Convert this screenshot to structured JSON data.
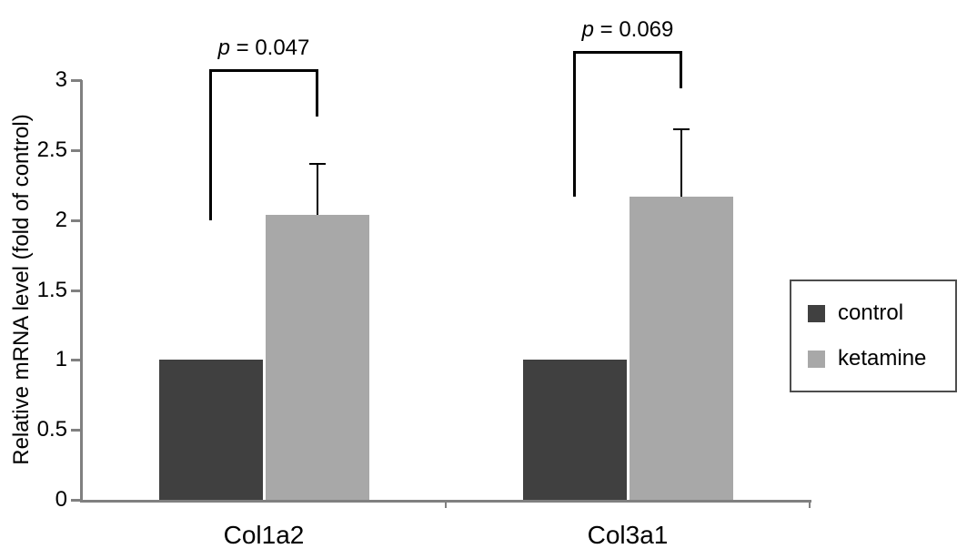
{
  "chart_data": {
    "type": "bar",
    "title": "",
    "xlabel": "",
    "ylabel": "Relative mRNA level (fold of control)",
    "categories": [
      "Col1a2",
      "Col3a1"
    ],
    "series": [
      {
        "name": "control",
        "color": "#404040",
        "values": [
          1.0,
          1.0
        ],
        "errors": [
          0,
          0
        ]
      },
      {
        "name": "ketamine",
        "color": "#a8a8a8",
        "values": [
          2.04,
          2.17
        ],
        "errors": [
          0.36,
          0.48
        ]
      }
    ],
    "ylim": [
      0,
      3
    ],
    "ytick_step": 0.5,
    "yticks": [
      "0",
      "0.5",
      "1",
      "1.5",
      "2",
      "2.5",
      "3"
    ],
    "grid": false,
    "legend_position": "right",
    "axis_color": "#808080",
    "error_bar_color": "#000000",
    "annotations": [
      {
        "label": "p = 0.047",
        "group": 0,
        "top": 3.08,
        "left_bottom": 2.0,
        "right_bottom": 2.74
      },
      {
        "label": "p = 0.069",
        "group": 1,
        "top": 3.21,
        "left_bottom": 2.17,
        "right_bottom": 2.94
      }
    ]
  }
}
